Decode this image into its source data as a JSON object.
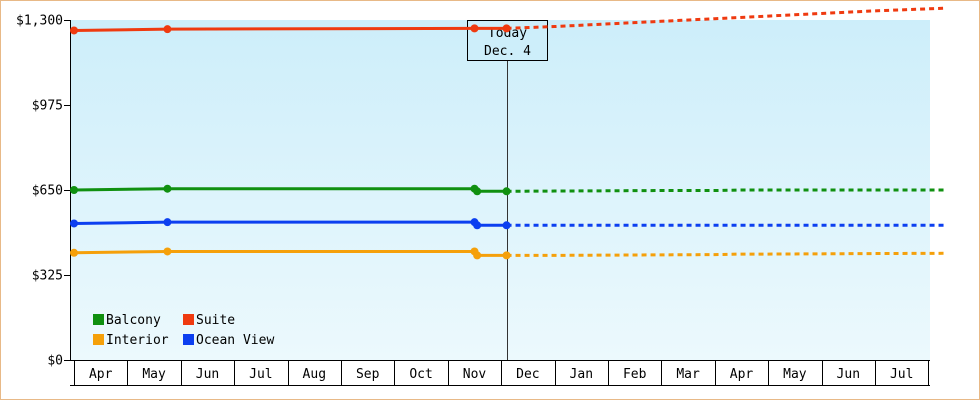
{
  "chart_data": {
    "type": "line",
    "title": "",
    "xlabel": "",
    "ylabel": "",
    "ylim": [
      0,
      1300
    ],
    "ytick_values": [
      0,
      325,
      650,
      975,
      1300
    ],
    "ytick_labels": [
      "$0",
      "$325",
      "$650",
      "$975",
      "$1,300"
    ],
    "x_categories": [
      "Apr",
      "May",
      "Jun",
      "Jul",
      "Aug",
      "Sep",
      "Oct",
      "Nov",
      "Dec",
      "Jan",
      "Feb",
      "Mar",
      "Apr",
      "May",
      "Jun",
      "Jul"
    ],
    "x_range": [
      0,
      16.3
    ],
    "grid": false,
    "background": [
      "#cdeefa",
      "#ecf9fd"
    ],
    "today_marker": {
      "x": 8.1,
      "label_line1": "Today",
      "label_line2": "Dec. 4"
    },
    "legend": {
      "placement": "bottom-left",
      "columns": 2
    },
    "series": [
      {
        "name": "Balcony",
        "color": "#109010",
        "x": [
          0,
          1.75,
          7.5,
          7.55,
          8.1,
          9,
          10,
          11,
          12,
          12.5,
          13,
          14,
          15,
          16.3
        ],
        "y": [
          650,
          655,
          655,
          645,
          645,
          646,
          647,
          648,
          648,
          650,
          650,
          650,
          650,
          650
        ],
        "markers": [
          0,
          1,
          2,
          3,
          4
        ],
        "solid_until": 4
      },
      {
        "name": "Suite",
        "color": "#ef3a10",
        "x": [
          0,
          1.75,
          7.5,
          8.1,
          9,
          10,
          11,
          12,
          13,
          14,
          15,
          16.3
        ],
        "y": [
          1260,
          1265,
          1268,
          1268,
          1275,
          1285,
          1295,
          1305,
          1315,
          1325,
          1335,
          1345
        ],
        "markers": [
          0,
          1,
          2,
          3
        ],
        "solid_until": 3
      },
      {
        "name": "Interior",
        "color": "#f5a00a",
        "x": [
          0,
          1.75,
          7.5,
          7.55,
          8.1,
          9,
          10,
          11,
          12,
          12.5,
          13,
          14,
          15,
          16.3
        ],
        "y": [
          410,
          415,
          415,
          400,
          400,
          400,
          401,
          402,
          403,
          405,
          405,
          406,
          407,
          408
        ],
        "markers": [
          0,
          1,
          2,
          3,
          4
        ],
        "solid_until": 4
      },
      {
        "name": "Ocean View",
        "color": "#0c3ff0",
        "x": [
          0,
          1.75,
          7.5,
          7.55,
          8.1,
          9,
          10,
          11,
          12,
          13,
          14,
          15,
          16.3
        ],
        "y": [
          522,
          527,
          527,
          515,
          515,
          515,
          515,
          515,
          515,
          515,
          515,
          515,
          515
        ],
        "markers": [
          0,
          1,
          2,
          3,
          4
        ],
        "solid_until": 4
      }
    ]
  }
}
